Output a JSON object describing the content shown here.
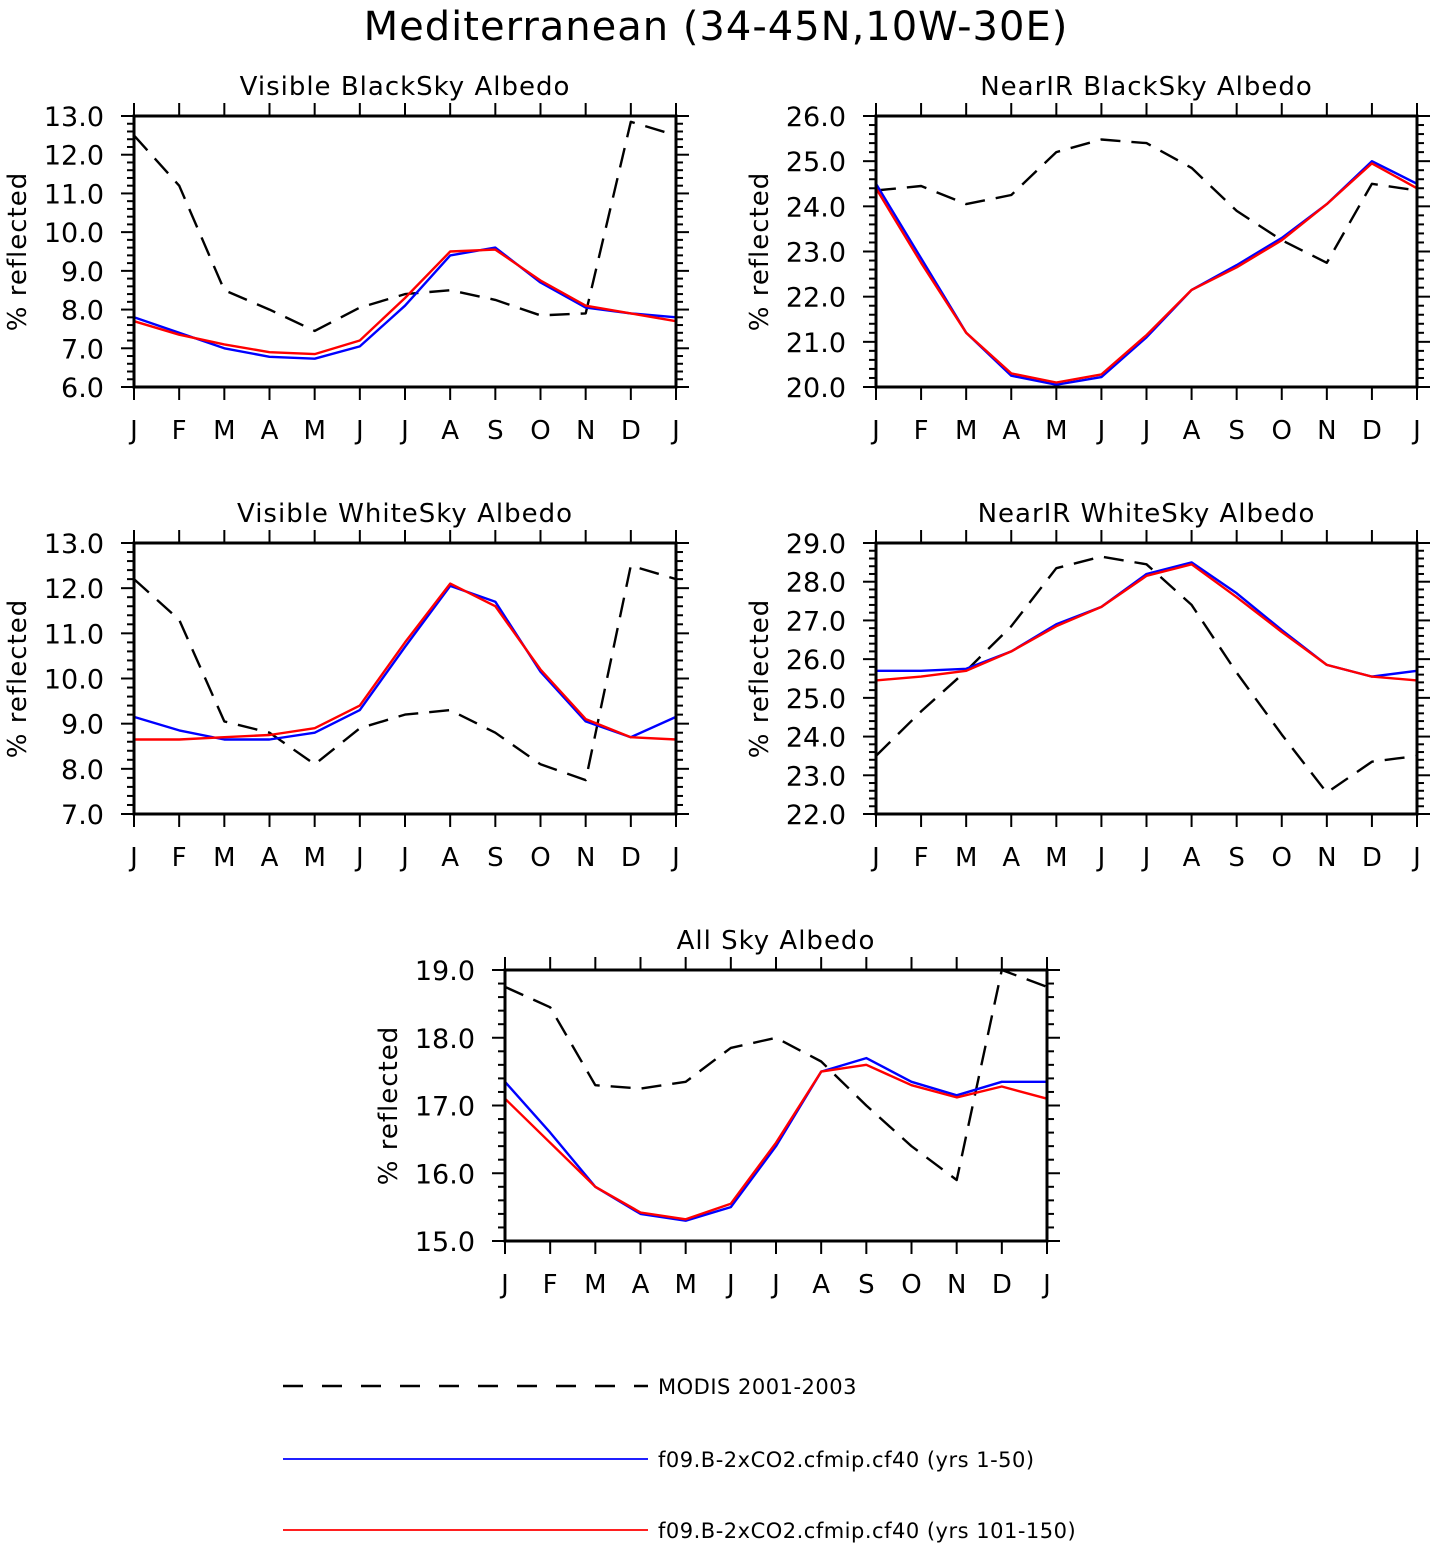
{
  "figure": {
    "title": "Mediterranean (34-45N,10W-30E)"
  },
  "legend": {
    "entries": [
      {
        "label": "MODIS 2001-2003",
        "color": "#000000",
        "dash": true
      },
      {
        "label": "f09.B-2xCO2.cfmip.cf40 (yrs 1-50)",
        "color": "#0000ff",
        "dash": false
      },
      {
        "label": "f09.B-2xCO2.cfmip.cf40 (yrs 101-150)",
        "color": "#ff0000",
        "dash": false
      }
    ]
  },
  "chart_data": [
    {
      "type": "line",
      "title": "Visible BlackSky Albedo",
      "xlabel": "",
      "ylabel": "% reflected",
      "categories": [
        "J",
        "F",
        "M",
        "A",
        "M",
        "J",
        "J",
        "A",
        "S",
        "O",
        "N",
        "D",
        "J"
      ],
      "ylim": [
        6.0,
        13.0
      ],
      "yticks": [
        "6.0",
        "7.0",
        "8.0",
        "9.0",
        "10.0",
        "11.0",
        "12.0",
        "13.0"
      ],
      "series": [
        {
          "name": "MODIS 2001-2003",
          "color": "#000000",
          "dash": true,
          "values": [
            12.5,
            11.2,
            8.5,
            8.0,
            7.45,
            8.05,
            8.4,
            8.5,
            8.25,
            7.85,
            7.9,
            12.85,
            12.5
          ]
        },
        {
          "name": "f09.B-2xCO2.cfmip.cf40 (yrs 1-50)",
          "color": "#0000ff",
          "dash": false,
          "values": [
            7.8,
            7.4,
            7.0,
            6.78,
            6.73,
            7.05,
            8.1,
            9.4,
            9.6,
            8.7,
            8.05,
            7.9,
            7.8
          ]
        },
        {
          "name": "f09.B-2xCO2.cfmip.cf40 (yrs 101-150)",
          "color": "#ff0000",
          "dash": false,
          "values": [
            7.7,
            7.35,
            7.1,
            6.9,
            6.85,
            7.2,
            8.3,
            9.5,
            9.55,
            8.75,
            8.1,
            7.9,
            7.7
          ]
        }
      ]
    },
    {
      "type": "line",
      "title": "NearIR BlackSky Albedo",
      "xlabel": "",
      "ylabel": "% reflected",
      "categories": [
        "J",
        "F",
        "M",
        "A",
        "M",
        "J",
        "J",
        "A",
        "S",
        "O",
        "N",
        "D",
        "J"
      ],
      "ylim": [
        20.0,
        26.0
      ],
      "yticks": [
        "20.0",
        "21.0",
        "22.0",
        "23.0",
        "24.0",
        "25.0",
        "26.0"
      ],
      "series": [
        {
          "name": "MODIS 2001-2003",
          "color": "#000000",
          "dash": true,
          "values": [
            24.35,
            24.45,
            24.05,
            24.25,
            25.2,
            25.48,
            25.4,
            24.85,
            23.9,
            23.25,
            22.75,
            24.5,
            24.35
          ]
        },
        {
          "name": "f09.B-2xCO2.cfmip.cf40 (yrs 1-50)",
          "color": "#0000ff",
          "dash": false,
          "values": [
            24.5,
            22.85,
            21.2,
            20.25,
            20.05,
            20.22,
            21.1,
            22.15,
            22.7,
            23.3,
            24.05,
            25.0,
            24.5
          ]
        },
        {
          "name": "f09.B-2xCO2.cfmip.cf40 (yrs 101-150)",
          "color": "#ff0000",
          "dash": false,
          "values": [
            24.4,
            22.75,
            21.2,
            20.3,
            20.1,
            20.28,
            21.15,
            22.15,
            22.65,
            23.25,
            24.05,
            24.95,
            24.4
          ]
        }
      ]
    },
    {
      "type": "line",
      "title": "Visible WhiteSky Albedo",
      "xlabel": "",
      "ylabel": "% reflected",
      "categories": [
        "J",
        "F",
        "M",
        "A",
        "M",
        "J",
        "J",
        "A",
        "S",
        "O",
        "N",
        "D",
        "J"
      ],
      "ylim": [
        7.0,
        13.0
      ],
      "yticks": [
        "7.0",
        "8.0",
        "9.0",
        "10.0",
        "11.0",
        "12.0",
        "13.0"
      ],
      "series": [
        {
          "name": "MODIS 2001-2003",
          "color": "#000000",
          "dash": true,
          "values": [
            12.2,
            11.3,
            9.05,
            8.8,
            8.1,
            8.9,
            9.2,
            9.3,
            8.8,
            8.1,
            7.75,
            12.5,
            12.2
          ]
        },
        {
          "name": "f09.B-2xCO2.cfmip.cf40 (yrs 1-50)",
          "color": "#0000ff",
          "dash": false,
          "values": [
            9.15,
            8.85,
            8.65,
            8.65,
            8.8,
            9.3,
            10.7,
            12.05,
            11.7,
            10.15,
            9.05,
            8.7,
            9.15
          ]
        },
        {
          "name": "f09.B-2xCO2.cfmip.cf40 (yrs 101-150)",
          "color": "#ff0000",
          "dash": false,
          "values": [
            8.65,
            8.65,
            8.7,
            8.75,
            8.9,
            9.4,
            10.8,
            12.1,
            11.6,
            10.2,
            9.1,
            8.7,
            8.65
          ]
        }
      ]
    },
    {
      "type": "line",
      "title": "NearIR WhiteSky Albedo",
      "xlabel": "",
      "ylabel": "% reflected",
      "categories": [
        "J",
        "F",
        "M",
        "A",
        "M",
        "J",
        "J",
        "A",
        "S",
        "O",
        "N",
        "D",
        "J"
      ],
      "ylim": [
        22.0,
        29.0
      ],
      "yticks": [
        "22.0",
        "23.0",
        "24.0",
        "25.0",
        "26.0",
        "27.0",
        "28.0",
        "29.0"
      ],
      "series": [
        {
          "name": "MODIS 2001-2003",
          "color": "#000000",
          "dash": true,
          "values": [
            23.5,
            24.65,
            25.7,
            26.85,
            28.35,
            28.65,
            28.45,
            27.4,
            25.65,
            24.05,
            22.55,
            23.35,
            23.5
          ]
        },
        {
          "name": "f09.B-2xCO2.cfmip.cf40 (yrs 1-50)",
          "color": "#0000ff",
          "dash": false,
          "values": [
            25.7,
            25.7,
            25.75,
            26.2,
            26.9,
            27.35,
            28.2,
            28.5,
            27.7,
            26.75,
            25.85,
            25.55,
            25.7
          ]
        },
        {
          "name": "f09.B-2xCO2.cfmip.cf40 (yrs 101-150)",
          "color": "#ff0000",
          "dash": false,
          "values": [
            25.45,
            25.55,
            25.7,
            26.2,
            26.85,
            27.35,
            28.15,
            28.45,
            27.6,
            26.7,
            25.85,
            25.55,
            25.45
          ]
        }
      ]
    },
    {
      "type": "line",
      "title": "All Sky Albedo",
      "xlabel": "",
      "ylabel": "% reflected",
      "categories": [
        "J",
        "F",
        "M",
        "A",
        "M",
        "J",
        "J",
        "A",
        "S",
        "O",
        "N",
        "D",
        "J"
      ],
      "ylim": [
        15.0,
        19.0
      ],
      "yticks": [
        "15.0",
        "16.0",
        "17.0",
        "18.0",
        "19.0"
      ],
      "series": [
        {
          "name": "MODIS 2001-2003",
          "color": "#000000",
          "dash": true,
          "values": [
            18.75,
            18.45,
            17.3,
            17.25,
            17.35,
            17.85,
            18.0,
            17.65,
            17.0,
            16.4,
            15.9,
            19.0,
            18.75
          ]
        },
        {
          "name": "f09.B-2xCO2.cfmip.cf40 (yrs 1-50)",
          "color": "#0000ff",
          "dash": false,
          "values": [
            17.35,
            16.6,
            15.8,
            15.4,
            15.3,
            15.5,
            16.4,
            17.5,
            17.7,
            17.35,
            17.15,
            17.35,
            17.35
          ]
        },
        {
          "name": "f09.B-2xCO2.cfmip.cf40 (yrs 101-150)",
          "color": "#ff0000",
          "dash": false,
          "values": [
            17.1,
            16.45,
            15.8,
            15.42,
            15.32,
            15.55,
            16.45,
            17.5,
            17.6,
            17.3,
            17.12,
            17.28,
            17.1
          ]
        }
      ]
    }
  ]
}
